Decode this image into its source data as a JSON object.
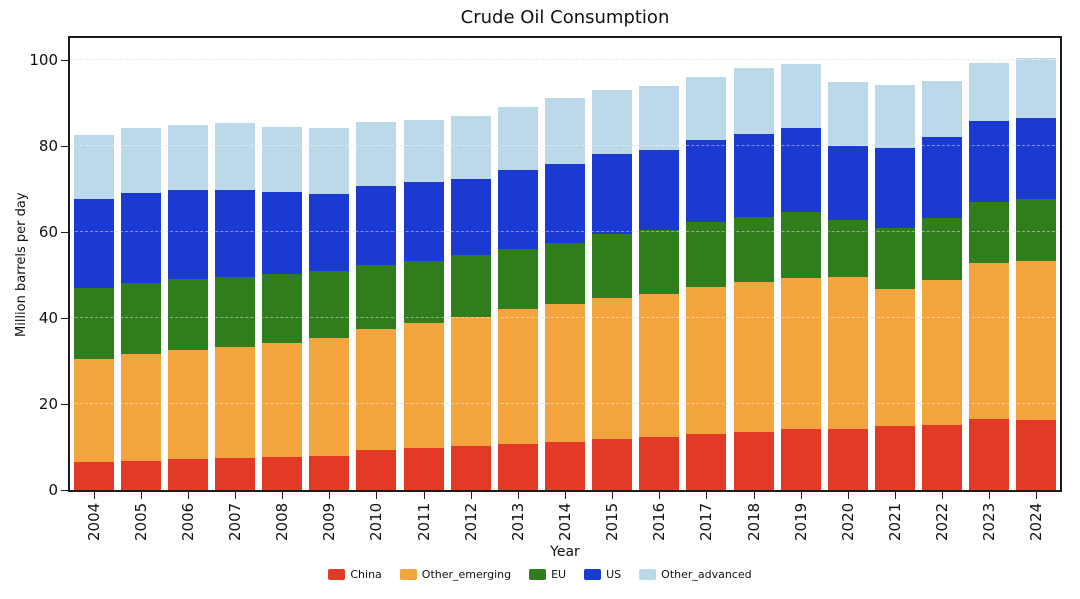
{
  "chart_data": {
    "type": "bar",
    "stacked": true,
    "title": "Crude Oil Consumption",
    "xlabel": "Year",
    "ylabel": "Million barrels per day",
    "ylim": [
      0,
      105
    ],
    "yticks": [
      0,
      20,
      40,
      60,
      80,
      100
    ],
    "grid": true,
    "legend_position": "bottom",
    "categories": [
      "2004",
      "2005",
      "2006",
      "2007",
      "2008",
      "2009",
      "2010",
      "2011",
      "2012",
      "2013",
      "2014",
      "2015",
      "2016",
      "2017",
      "2018",
      "2019",
      "2020",
      "2021",
      "2022",
      "2023",
      "2024"
    ],
    "series": [
      {
        "name": "China",
        "color": "#e23a27",
        "values": [
          6.5,
          6.8,
          7.2,
          7.5,
          7.7,
          8.0,
          9.2,
          9.7,
          10.2,
          10.7,
          11.2,
          11.8,
          12.3,
          13.0,
          13.5,
          14.2,
          14.2,
          14.8,
          15.2,
          16.5,
          16.3
        ]
      },
      {
        "name": "Other_emerging",
        "color": "#f4a43c",
        "values": [
          24.0,
          24.7,
          25.3,
          25.8,
          26.5,
          27.2,
          28.1,
          29.1,
          30.0,
          31.3,
          32.0,
          32.7,
          33.2,
          34.2,
          34.8,
          35.1,
          35.3,
          32.0,
          33.6,
          36.3,
          37.0
        ]
      },
      {
        "name": "EU",
        "color": "#2f7d1c",
        "values": [
          16.5,
          16.5,
          16.5,
          16.2,
          16.0,
          15.6,
          14.9,
          14.5,
          14.3,
          14.0,
          14.1,
          15.0,
          15.0,
          15.1,
          15.2,
          15.2,
          13.3,
          14.0,
          14.4,
          14.0,
          14.2
        ]
      },
      {
        "name": "US",
        "color": "#1b3ad2",
        "values": [
          20.5,
          21.0,
          20.8,
          20.3,
          19.0,
          18.0,
          18.5,
          18.2,
          17.7,
          18.3,
          18.4,
          18.5,
          18.5,
          19.0,
          19.3,
          19.5,
          17.2,
          18.7,
          18.8,
          19.0,
          19.0
        ]
      },
      {
        "name": "Other_advanced",
        "color": "#bcd9ea",
        "values": [
          15.0,
          15.0,
          15.0,
          15.4,
          15.1,
          15.4,
          14.8,
          14.5,
          14.8,
          14.7,
          15.3,
          15.0,
          14.8,
          14.7,
          15.2,
          15.0,
          14.8,
          14.7,
          13.0,
          13.4,
          13.8
        ]
      }
    ]
  }
}
